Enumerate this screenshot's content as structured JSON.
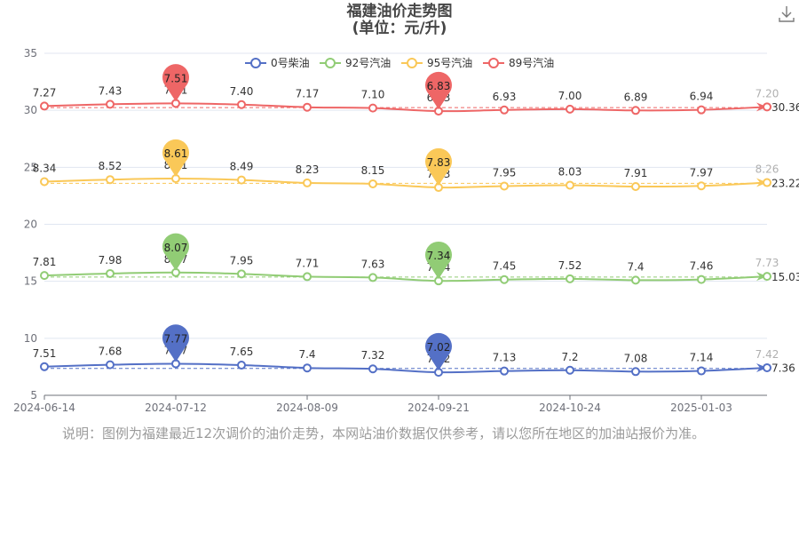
{
  "title": {
    "line1": "福建油价走势图",
    "line2": "(单位：元/升)"
  },
  "toolbox": {
    "icon": "download-icon"
  },
  "footnote": "说明：图例为福建最近12次调价的油价走势，本网站油价数据仅供参考，请以您所在地区的加油站报价为准。",
  "chart_data": {
    "type": "line",
    "title": "福建油价走势图",
    "subtitle": "(单位：元/升)",
    "x_tick_labels": [
      "2024-06-14",
      "2024-07-12",
      "2024-08-09",
      "2024-09-21",
      "2024-10-24",
      "2025-01-03"
    ],
    "y_axis": {
      "min": 5,
      "max": 35,
      "ticks": [
        5,
        10,
        15,
        20,
        25,
        30,
        35
      ]
    },
    "legend_position": "top-center",
    "series": [
      {
        "name": "0号柴油",
        "color": "#5470c6",
        "offset": 0,
        "labels": [
          "7.51",
          "7.68",
          "7.77",
          "7.65",
          "7.4",
          "7.32",
          "7.02",
          "7.13",
          "7.2",
          "7.08",
          "7.14",
          "7.42"
        ],
        "max_label": "7.77",
        "min_label": "7.02",
        "avg_label": "7.36"
      },
      {
        "name": "92号汽油",
        "color": "#91cc75",
        "offset": 7.7,
        "labels": [
          "7.81",
          "7.98",
          "8.07",
          "7.95",
          "7.71",
          "7.63",
          "7.34",
          "7.45",
          "7.52",
          "7.4",
          "7.46",
          "7.73"
        ],
        "max_label": "8.07",
        "min_label": "7.34",
        "avg_label": "15.03"
      },
      {
        "name": "95号汽油",
        "color": "#fac858",
        "offset": 15.4,
        "labels": [
          "8.34",
          "8.52",
          "8.61",
          "8.49",
          "8.23",
          "8.15",
          "7.83",
          "7.95",
          "8.03",
          "7.91",
          "7.97",
          "8.26"
        ],
        "max_label": "8.61",
        "min_label": "7.83",
        "avg_label": "23.22"
      },
      {
        "name": "89号汽油",
        "color": "#ee6666",
        "offset": 23.1,
        "labels": [
          "7.27",
          "7.43",
          "7.51",
          "7.40",
          "7.17",
          "7.10",
          "6.83",
          "6.93",
          "7.00",
          "6.89",
          "6.94",
          "7.20"
        ],
        "max_label": "7.51",
        "min_label": "6.83",
        "avg_label": "30.36"
      }
    ]
  }
}
